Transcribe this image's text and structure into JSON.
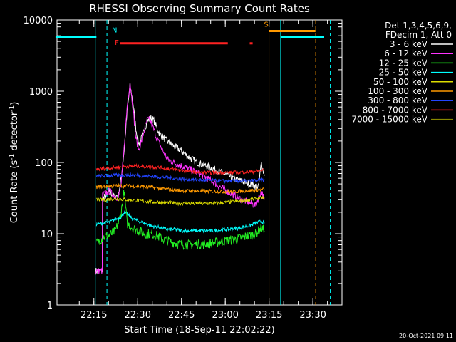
{
  "chart_data": {
    "type": "line",
    "title": "RHESSI Observing Summary Count Rates",
    "xlabel": "Start Time (18-Sep-11 22:02:22)",
    "ylabel_main": "Count Rate (s",
    "ylabel_sup1": "-1",
    "ylabel_mid": " detector",
    "ylabel_sup2": "-1",
    "ylabel_end": ")",
    "y_scale": "log",
    "ylim": [
      1,
      10000
    ],
    "xlim_minutes": [
      0,
      97.6
    ],
    "x_ticks": [
      {
        "label": "22:15",
        "minute": 12.63
      },
      {
        "label": "22:30",
        "minute": 27.63
      },
      {
        "label": "22:45",
        "minute": 42.63
      },
      {
        "label": "23:00",
        "minute": 57.63
      },
      {
        "label": "23:15",
        "minute": 72.63
      },
      {
        "label": "23:30",
        "minute": 87.63
      }
    ],
    "x_minor_step_minutes": 5,
    "y_ticks": [
      {
        "label": "1",
        "value": 1
      },
      {
        "label": "10",
        "value": 10
      },
      {
        "label": "100",
        "value": 100
      },
      {
        "label": "1000",
        "value": 1000
      },
      {
        "label": "10000",
        "value": 10000
      }
    ],
    "legend_header": [
      "Det 1,3,4,5,6,9,",
      "FDecim 1, Att 0"
    ],
    "legend_position": "right",
    "series": [
      {
        "name": "3 - 6 keV",
        "color": "#ffffff",
        "points": [
          [
            13.2,
            3
          ],
          [
            15.5,
            3
          ],
          [
            15.6,
            30
          ],
          [
            18,
            40
          ],
          [
            19.5,
            33
          ],
          [
            21,
            35
          ],
          [
            22,
            60
          ],
          [
            23,
            150
          ],
          [
            24,
            500
          ],
          [
            25,
            1200
          ],
          [
            26,
            700
          ],
          [
            27,
            300
          ],
          [
            28,
            180
          ],
          [
            29,
            220
          ],
          [
            30,
            300
          ],
          [
            31,
            380
          ],
          [
            32,
            420
          ],
          [
            33,
            400
          ],
          [
            34,
            320
          ],
          [
            35,
            260
          ],
          [
            37,
            210
          ],
          [
            39,
            180
          ],
          [
            42,
            150
          ],
          [
            45,
            120
          ],
          [
            48,
            100
          ],
          [
            51,
            90
          ],
          [
            54,
            80
          ],
          [
            57,
            70
          ],
          [
            60,
            60
          ],
          [
            63,
            55
          ],
          [
            66,
            50
          ],
          [
            69,
            45
          ],
          [
            70,
            100
          ],
          [
            71,
            65
          ]
        ]
      },
      {
        "name": "6 - 12 keV",
        "color": "#ff33ff",
        "points": [
          [
            13.2,
            3
          ],
          [
            15.5,
            3
          ],
          [
            15.6,
            35
          ],
          [
            18,
            40
          ],
          [
            19.5,
            34
          ],
          [
            21,
            32
          ],
          [
            22,
            50
          ],
          [
            23,
            160
          ],
          [
            24,
            600
          ],
          [
            25,
            1350
          ],
          [
            26,
            600
          ],
          [
            27,
            220
          ],
          [
            28,
            150
          ],
          [
            29,
            200
          ],
          [
            30,
            300
          ],
          [
            31,
            400
          ],
          [
            32,
            380
          ],
          [
            33,
            300
          ],
          [
            34,
            230
          ],
          [
            36,
            150
          ],
          [
            38,
            110
          ],
          [
            41,
            95
          ],
          [
            44,
            85
          ],
          [
            47,
            75
          ],
          [
            50,
            65
          ],
          [
            53,
            55
          ],
          [
            56,
            45
          ],
          [
            59,
            38
          ],
          [
            62,
            32
          ],
          [
            65,
            28
          ],
          [
            68,
            25
          ],
          [
            70,
            40
          ],
          [
            71,
            30
          ]
        ]
      },
      {
        "name": "12 - 25 keV",
        "color": "#22ee22",
        "points": [
          [
            13.5,
            7.5
          ],
          [
            16,
            9
          ],
          [
            18,
            9.5
          ],
          [
            20,
            11
          ],
          [
            21,
            14
          ],
          [
            22,
            20
          ],
          [
            23,
            40
          ],
          [
            24,
            14
          ],
          [
            26,
            12
          ],
          [
            28,
            11
          ],
          [
            30,
            10
          ],
          [
            32,
            10
          ],
          [
            34,
            9.5
          ],
          [
            36,
            8.5
          ],
          [
            38,
            8
          ],
          [
            40,
            7.5
          ],
          [
            42,
            7.2
          ],
          [
            44,
            7
          ],
          [
            46,
            7
          ],
          [
            48,
            7.2
          ],
          [
            50,
            7
          ],
          [
            52,
            7.3
          ],
          [
            54,
            7.5
          ],
          [
            56,
            7.8
          ],
          [
            58,
            8
          ],
          [
            60,
            8.2
          ],
          [
            62,
            8.5
          ],
          [
            64,
            9
          ],
          [
            66,
            9.5
          ],
          [
            68,
            10
          ],
          [
            70,
            12
          ],
          [
            71,
            11
          ]
        ]
      },
      {
        "name": "25 - 50 keV",
        "color": "#00ffff",
        "points": [
          [
            13.5,
            13.5
          ],
          [
            16,
            14
          ],
          [
            18,
            14.5
          ],
          [
            20,
            16
          ],
          [
            22,
            17
          ],
          [
            23,
            20
          ],
          [
            24,
            19
          ],
          [
            26,
            16
          ],
          [
            28,
            15
          ],
          [
            30,
            14
          ],
          [
            32,
            13
          ],
          [
            34,
            12.5
          ],
          [
            36,
            12
          ],
          [
            38,
            11.5
          ],
          [
            40,
            11.5
          ],
          [
            43,
            11
          ],
          [
            46,
            11
          ],
          [
            50,
            11
          ],
          [
            54,
            11
          ],
          [
            58,
            11.5
          ],
          [
            62,
            12
          ],
          [
            66,
            13
          ],
          [
            68,
            14
          ],
          [
            70,
            15
          ],
          [
            71,
            14
          ]
        ]
      },
      {
        "name": "50 - 100 keV",
        "color": "#dddd00",
        "points": [
          [
            13.5,
            30
          ],
          [
            16,
            30
          ],
          [
            20,
            31
          ],
          [
            24,
            30
          ],
          [
            28,
            29
          ],
          [
            32,
            28
          ],
          [
            36,
            27.5
          ],
          [
            40,
            27
          ],
          [
            44,
            26.5
          ],
          [
            48,
            26.5
          ],
          [
            52,
            26.5
          ],
          [
            56,
            27
          ],
          [
            60,
            28
          ],
          [
            64,
            29
          ],
          [
            68,
            31
          ],
          [
            71,
            32
          ]
        ]
      },
      {
        "name": "100 - 300 keV",
        "color": "#ff9900",
        "points": [
          [
            13.5,
            45
          ],
          [
            16,
            46
          ],
          [
            20,
            47
          ],
          [
            24,
            47
          ],
          [
            28,
            46
          ],
          [
            32,
            45
          ],
          [
            36,
            43
          ],
          [
            40,
            41
          ],
          [
            44,
            40
          ],
          [
            48,
            39.5
          ],
          [
            52,
            39.5
          ],
          [
            56,
            39
          ],
          [
            60,
            39
          ],
          [
            64,
            40
          ],
          [
            68,
            41
          ],
          [
            71,
            42
          ]
        ]
      },
      {
        "name": "300 - 800 keV",
        "color": "#2244ff",
        "points": [
          [
            13.5,
            64
          ],
          [
            16,
            65
          ],
          [
            20,
            66
          ],
          [
            24,
            67
          ],
          [
            28,
            66
          ],
          [
            32,
            64
          ],
          [
            36,
            62
          ],
          [
            40,
            60
          ],
          [
            44,
            58
          ],
          [
            48,
            57
          ],
          [
            52,
            56
          ],
          [
            56,
            55
          ],
          [
            60,
            55
          ],
          [
            64,
            55
          ],
          [
            68,
            56
          ],
          [
            71,
            57
          ]
        ]
      },
      {
        "name": "800 - 7000 keV",
        "color": "#ff2222",
        "points": [
          [
            13.5,
            80
          ],
          [
            16,
            82
          ],
          [
            20,
            85
          ],
          [
            24,
            88
          ],
          [
            28,
            89
          ],
          [
            32,
            87
          ],
          [
            36,
            84
          ],
          [
            40,
            80
          ],
          [
            44,
            76
          ],
          [
            48,
            73
          ],
          [
            52,
            72
          ],
          [
            56,
            72
          ],
          [
            60,
            72
          ],
          [
            64,
            73
          ],
          [
            68,
            75
          ],
          [
            71,
            78
          ]
        ]
      },
      {
        "name": "7000 - 15000 keV",
        "color": "#888800",
        "points": []
      }
    ],
    "flags": [
      {
        "label": "N",
        "color": "#00ffff",
        "segments": [
          [
            -0.5,
            13.5
          ],
          [
            76.5,
            91.5
          ]
        ],
        "level": 5800
      },
      {
        "label": "F",
        "color": "#ff2222",
        "segments": [
          [
            21.5,
            58.5
          ],
          [
            66,
            67
          ]
        ],
        "level": 4700
      },
      {
        "label": "S",
        "color": "#ff9900",
        "segments": [
          [
            72.6,
            88.5
          ]
        ],
        "level": 7000
      }
    ],
    "vlines": [
      {
        "minute": 13.1,
        "color": "#00ffff",
        "dashed": false
      },
      {
        "minute": 17.1,
        "color": "#00ffff",
        "dashed": true
      },
      {
        "minute": 72.6,
        "color": "#ff9900",
        "dashed": false
      },
      {
        "minute": 76.6,
        "color": "#00ffff",
        "dashed": false
      },
      {
        "minute": 88.6,
        "color": "#ff9900",
        "dashed": true
      },
      {
        "minute": 93.6,
        "color": "#00ffff",
        "dashed": true
      }
    ],
    "grid": false
  },
  "footer_timestamp": "20-Oct-2021 09:11"
}
